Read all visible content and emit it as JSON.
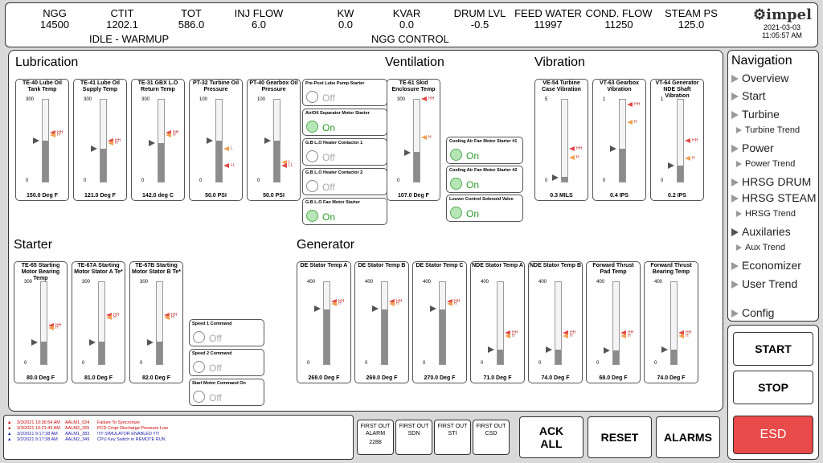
{
  "header": {
    "cells": [
      {
        "label": "NGG",
        "value": "14500"
      },
      {
        "label": "CTIT",
        "value": "1202.1"
      },
      {
        "label": "TOT",
        "value": "586.0"
      },
      {
        "label": "INJ FLOW",
        "value": "6.0"
      },
      {
        "label": "KW",
        "value": "0.0"
      },
      {
        "label": "KVAR",
        "value": "0.0"
      },
      {
        "label": "DRUM LVL",
        "value": "-0.5"
      },
      {
        "label": "FEED WATER",
        "value": "11997"
      },
      {
        "label": "COND. FLOW",
        "value": "11250"
      },
      {
        "label": "STEAM PS",
        "value": "125.0"
      }
    ],
    "status_left": "IDLE - WARMUP",
    "status_center": "NGG CONTROL",
    "logo": "impel",
    "date": "2021-03-03",
    "time": "11:05:57 AM"
  },
  "sections": {
    "lubrication": "Lubrication",
    "ventilation": "Ventilation",
    "vibration": "Vibration",
    "starter": "Starter",
    "generator": "Generator"
  },
  "gauges": [
    {
      "title": "TE-40 Lube Oil Tank Temp",
      "max": "300",
      "min": "0",
      "value": "150.0 Deg F",
      "level": 0.5,
      "alarms": [
        {
          "t": "HH",
          "cls": "hh",
          "lvl": 0.6
        },
        {
          "t": "H",
          "cls": "h",
          "lvl": 0.57
        }
      ]
    },
    {
      "title": "TE-41 Lube Oil Supply Temp",
      "max": "300",
      "min": "0",
      "value": "121.0 Deg F",
      "level": 0.4,
      "alarms": [
        {
          "t": "HH",
          "cls": "hh",
          "lvl": 0.5
        },
        {
          "t": "H",
          "cls": "h",
          "lvl": 0.47
        }
      ]
    },
    {
      "title": "TE-31 GBX L.O Return Temp",
      "max": "300",
      "min": "0",
      "value": "142.0 deg C",
      "level": 0.47,
      "alarms": [
        {
          "t": "HH",
          "cls": "hh",
          "lvl": 0.6
        },
        {
          "t": "H",
          "cls": "h",
          "lvl": 0.57
        }
      ]
    },
    {
      "title": "PT-32 Turbine Oil Pressure",
      "max": "100",
      "min": "0",
      "value": "50.0 PSI",
      "level": 0.5,
      "alarms": [
        {
          "t": "L",
          "cls": "h",
          "lvl": 0.4
        },
        {
          "t": "LL",
          "cls": "ll",
          "lvl": 0.2
        }
      ]
    },
    {
      "title": "PT-40 Gearbox Oil Pressure",
      "max": "100",
      "min": "0",
      "value": "50.0 PSI",
      "level": 0.5,
      "alarms": [
        {
          "t": "L",
          "cls": "h",
          "lvl": 0.24
        },
        {
          "t": "LL",
          "cls": "ll",
          "lvl": 0.2
        }
      ]
    },
    {
      "title": "TE-61 Skid Enclosure Temp",
      "max": "300",
      "min": "0",
      "value": "107.0 Deg F",
      "level": 0.36,
      "alarms": [
        {
          "t": "HH",
          "cls": "hh",
          "lvl": 1.0
        },
        {
          "t": "H",
          "cls": "h",
          "lvl": 0.54
        }
      ]
    },
    {
      "title": "VE-54 Turbine Case Vibration",
      "max": "5",
      "min": "0",
      "value": "0.3 MILS",
      "level": 0.06,
      "alarms": [
        {
          "t": "HH",
          "cls": "hh",
          "lvl": 0.4
        },
        {
          "t": "H",
          "cls": "h",
          "lvl": 0.3
        }
      ]
    },
    {
      "title": "VT-63 Gearbox Vibration",
      "max": "1",
      "min": "0",
      "value": "0.4 IPS",
      "level": 0.4,
      "alarms": [
        {
          "t": "HH",
          "cls": "hh",
          "lvl": 0.93
        },
        {
          "t": "H",
          "cls": "h",
          "lvl": 0.72
        }
      ]
    },
    {
      "title": "VT-64 Generator NDE Shaft Vibration",
      "max": "1",
      "min": "0",
      "value": "0.2 IPS",
      "level": 0.2,
      "alarms": [
        {
          "t": "HH",
          "cls": "hh",
          "lvl": 0.5
        },
        {
          "t": "H",
          "cls": "h",
          "lvl": 0.29
        }
      ]
    },
    {
      "title": "TE-65 Starting Motor Bearing Temp",
      "max": "300",
      "min": "0",
      "value": "80.0 Deg F",
      "level": 0.27,
      "alarms": [
        {
          "t": "HH",
          "cls": "hh",
          "lvl": 0.47
        },
        {
          "t": "H",
          "cls": "h",
          "lvl": 0.44
        }
      ]
    },
    {
      "title": "TE-67A Starting Motor Stator A Te*",
      "max": "300",
      "min": "0",
      "value": "81.0 Deg F",
      "level": 0.27,
      "alarms": [
        {
          "t": "HH",
          "cls": "hh",
          "lvl": 0.6
        },
        {
          "t": "H",
          "cls": "h",
          "lvl": 0.57
        }
      ]
    },
    {
      "title": "TE-67B Starting Motor Stator B Te*",
      "max": "300",
      "min": "0",
      "value": "82.0 Deg F",
      "level": 0.27,
      "alarms": [
        {
          "t": "HH",
          "cls": "hh",
          "lvl": 0.6
        },
        {
          "t": "H",
          "cls": "h",
          "lvl": 0.57
        }
      ]
    },
    {
      "title": "DE Stator Temp A",
      "max": "400",
      "min": "0",
      "value": "268.0 Deg F",
      "level": 0.67,
      "alarms": [
        {
          "t": "HH",
          "cls": "hh",
          "lvl": 0.76
        },
        {
          "t": "H",
          "cls": "h",
          "lvl": 0.73
        }
      ]
    },
    {
      "title": "DE Stator Temp B",
      "max": "400",
      "min": "0",
      "value": "269.0 Deg F",
      "level": 0.67,
      "alarms": [
        {
          "t": "HH",
          "cls": "hh",
          "lvl": 0.76
        },
        {
          "t": "H",
          "cls": "h",
          "lvl": 0.73
        }
      ]
    },
    {
      "title": "DE Stator Temp C",
      "max": "400",
      "min": "0",
      "value": "270.0 Deg F",
      "level": 0.67,
      "alarms": [
        {
          "t": "HH",
          "cls": "hh",
          "lvl": 0.76
        },
        {
          "t": "H",
          "cls": "h",
          "lvl": 0.73
        }
      ]
    },
    {
      "title": "NDE Stator Temp A",
      "max": "400",
      "min": "0",
      "value": "71.0 Deg F",
      "level": 0.18,
      "alarms": [
        {
          "t": "HH",
          "cls": "hh",
          "lvl": 0.38
        },
        {
          "t": "H",
          "cls": "h",
          "lvl": 0.35
        }
      ]
    },
    {
      "title": "NDE Stator Temp B",
      "max": "400",
      "min": "0",
      "value": "74.0 Deg F",
      "level": 0.18,
      "alarms": [
        {
          "t": "HH",
          "cls": "hh",
          "lvl": 0.38
        },
        {
          "t": "H",
          "cls": "h",
          "lvl": 0.35
        }
      ]
    },
    {
      "title": "Forward Thrust Pad Temp",
      "max": "400",
      "min": "0",
      "value": "68.0 Deg F",
      "level": 0.17,
      "alarms": [
        {
          "t": "HH",
          "cls": "hh",
          "lvl": 0.38
        },
        {
          "t": "H",
          "cls": "h",
          "lvl": 0.35
        }
      ]
    },
    {
      "title": "Forward Thrust Bearing Temp",
      "max": "400",
      "min": "0",
      "value": "74.0 Deg F",
      "level": 0.18,
      "alarms": [
        {
          "t": "HH",
          "cls": "hh",
          "lvl": 0.38
        },
        {
          "t": "H",
          "cls": "h",
          "lvl": 0.35
        }
      ]
    }
  ],
  "statuses": [
    {
      "title": "Pre-Post Lube Pump Starter",
      "value": "Off",
      "on": false
    },
    {
      "title": "Air/Oil Separator Motor Starter",
      "value": "On",
      "on": true
    },
    {
      "title": "G.B L.O Heater Contactor 1",
      "value": "Off",
      "on": false
    },
    {
      "title": "G.B L.O Heater Contactor 2",
      "value": "Off",
      "on": false
    },
    {
      "title": "G.B L.O Fan Motor Starter",
      "value": "On",
      "on": true
    },
    {
      "title": "Cooling Air Fan Motor Starter #1",
      "value": "On",
      "on": true
    },
    {
      "title": "Cooling Air Fan Motor Starter #2",
      "value": "On",
      "on": true
    },
    {
      "title": "Louver Control Solenoid Valve",
      "value": "On",
      "on": true
    },
    {
      "title": "Speed 1 Command",
      "value": "Off",
      "on": false
    },
    {
      "title": "Speed 2 Command",
      "value": "Off",
      "on": false
    },
    {
      "title": "Start Motor Command On",
      "value": "Off",
      "on": false
    }
  ],
  "nav": {
    "title": "Navigation",
    "items": [
      {
        "label": "Overview",
        "sub": false
      },
      {
        "label": "Start",
        "sub": false
      },
      {
        "label": "Turbine",
        "sub": false
      },
      {
        "label": "Turbine Trend",
        "sub": true
      },
      {
        "label": "Power",
        "sub": false
      },
      {
        "label": "Power Trend",
        "sub": true
      },
      {
        "label": "HRSG DRUM",
        "sub": false
      },
      {
        "label": "HRSG STEAM",
        "sub": false
      },
      {
        "label": "HRSG Trend",
        "sub": true
      },
      {
        "label": "Auxilaries",
        "sub": false,
        "active": true
      },
      {
        "label": "Aux Trend",
        "sub": true
      },
      {
        "label": "Economizer",
        "sub": false
      },
      {
        "label": "User Trend",
        "sub": false
      },
      {
        "label": "Config",
        "sub": false
      }
    ]
  },
  "controls": {
    "start": "START",
    "stop": "STOP",
    "esd": "ESD",
    "ack": "ACK ALL",
    "reset": "RESET",
    "alarms": "ALARMS"
  },
  "first_out": [
    {
      "label": "FIRST OUT ALARM",
      "value": "2288"
    },
    {
      "label": "FIRST OUT SDN",
      "value": ""
    },
    {
      "label": "FIRST OUT STI",
      "value": ""
    },
    {
      "label": "FIRST OUT CSD",
      "value": ""
    }
  ],
  "alarm_list": [
    {
      "time": "3/3/2021 10:36:54 AM",
      "tag": "AALM1_024",
      "msg": "Failure To Syncronize",
      "color": "#cc0000"
    },
    {
      "time": "3/3/2021 10:21:43 AM",
      "tag": "AALM2_265",
      "msg": "PCD Cmpr Discharge Pressure Low",
      "color": "#cc0000"
    },
    {
      "time": "3/2/2021 9:17:38 AM",
      "tag": "AALM1_383",
      "msg": "!!!!! SIMULATOR ENABLED !!!!!",
      "color": "#1a1aa8"
    },
    {
      "time": "3/2/2021 9:17:38 AM",
      "tag": "AALM2_349",
      "msg": "CPU Key Switch in REMOTE RUN",
      "color": "#1a1aa8"
    }
  ],
  "colors": {
    "esd": "#e94a4a",
    "on": "#2a9a2a",
    "alarm_red": "#cc0000",
    "alarm_blue": "#1a1aa8"
  }
}
